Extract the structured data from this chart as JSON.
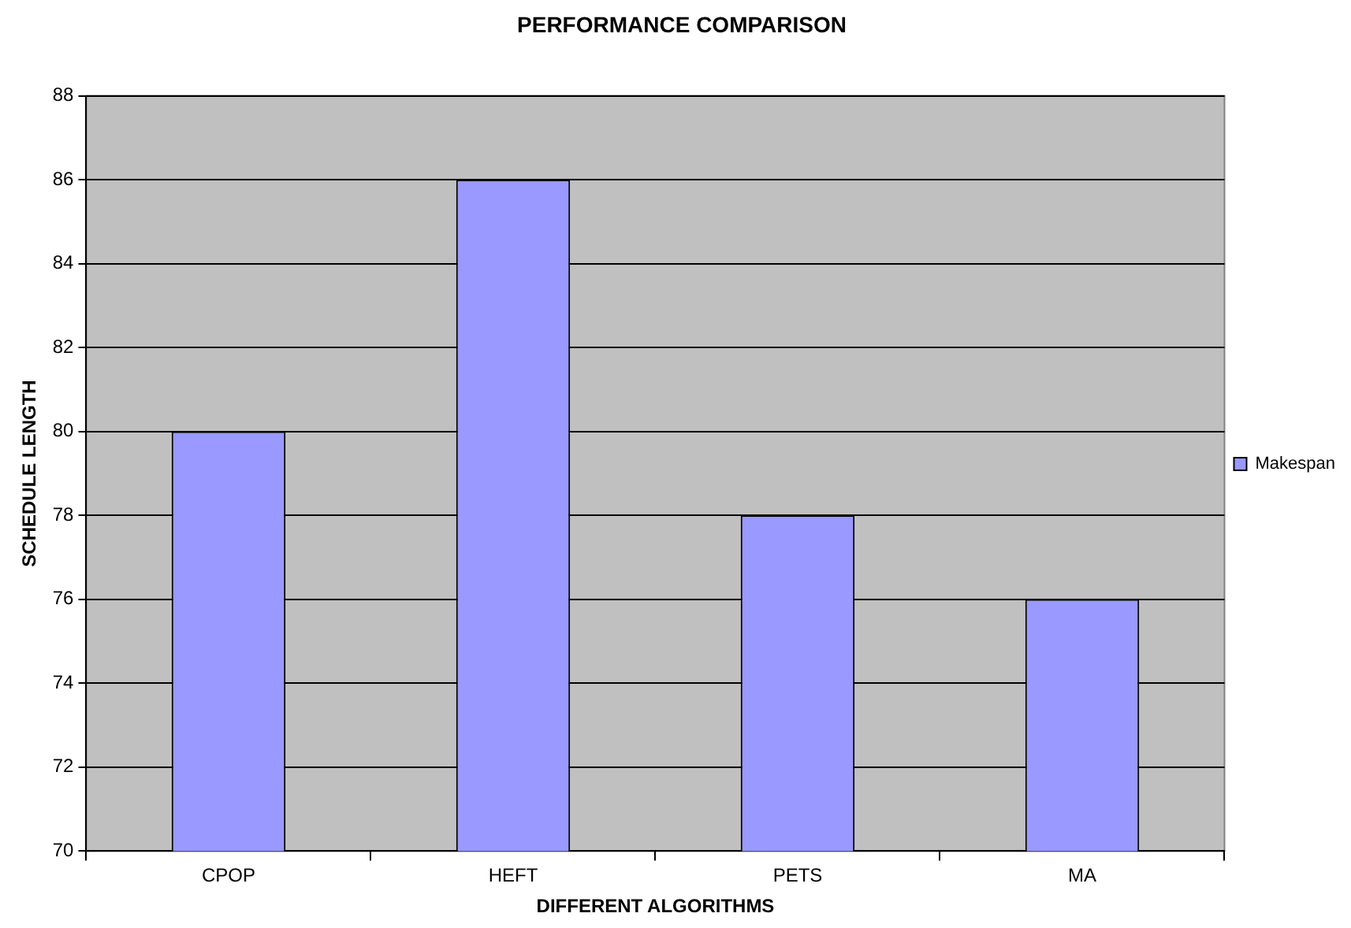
{
  "chart_data": {
    "type": "bar",
    "title": "PERFORMANCE COMPARISON",
    "xlabel": "DIFFERENT ALGORITHMS",
    "ylabel": "SCHEDULE LENGTH",
    "categories": [
      "CPOP",
      "HEFT",
      "PETS",
      "MA"
    ],
    "series": [
      {
        "name": "Makespan",
        "color": "#9999ff",
        "values": [
          80,
          86,
          78,
          76
        ]
      }
    ],
    "ylim": [
      70,
      88
    ],
    "yticks": [
      70,
      72,
      74,
      76,
      78,
      80,
      82,
      84,
      86,
      88
    ],
    "grid": "y",
    "legend": "right"
  }
}
